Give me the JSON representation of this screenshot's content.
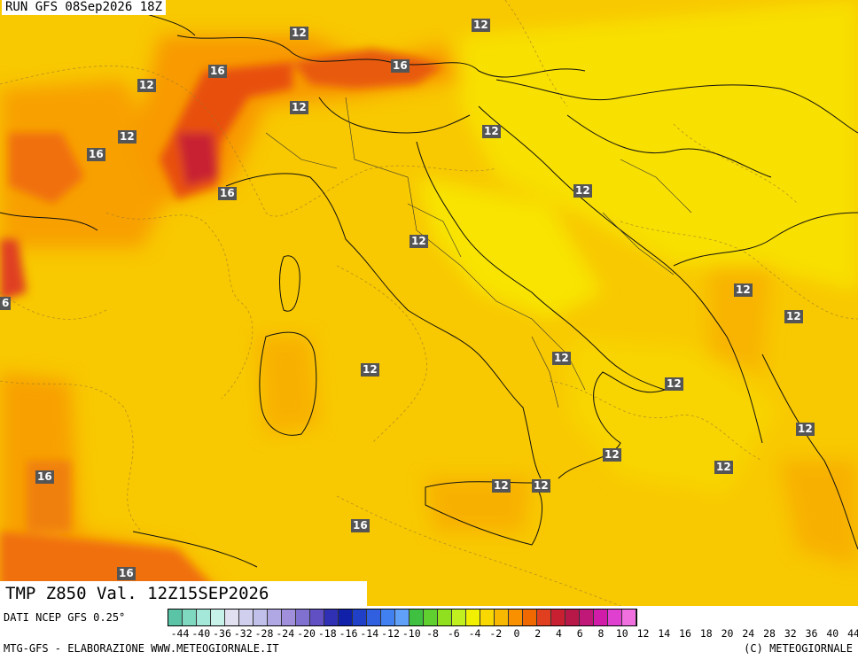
{
  "header": {
    "run": "RUN GFS 08Sep2026 18Z"
  },
  "variable": {
    "label": "TMP  Z850  Val. 12Z15SEP2026"
  },
  "source": "DATI NCEP GFS 0.25°",
  "footer": {
    "left": "MTG-GFS - ELABORAZIONE WWW.METEOGIORNALE.IT",
    "right": "(C) METEOGIORNALE"
  },
  "isotherm_labels": [
    "12",
    "12",
    "16",
    "12",
    "16",
    "12",
    "12",
    "16",
    "16",
    "12",
    "12",
    "12",
    "12",
    "12",
    "12",
    "12",
    "12",
    "12",
    "12",
    "12",
    "12",
    "12",
    "16",
    "16",
    "6"
  ],
  "legend": {
    "ticks": [
      "-44",
      "-40",
      "-36",
      "-32",
      "-28",
      "-24",
      "-20",
      "-18",
      "-16",
      "-14",
      "-12",
      "-10",
      "-8",
      "-6",
      "-4",
      "-2",
      "0",
      "2",
      "4",
      "6",
      "8",
      "10",
      "12",
      "14",
      "16",
      "18",
      "20",
      "24",
      "28",
      "32",
      "36",
      "40",
      "44"
    ],
    "colors": [
      "#5cc4a6",
      "#7fd8c0",
      "#a3e8d8",
      "#c7f2ea",
      "#e0e0f0",
      "#d0d0ee",
      "#c0c0ea",
      "#b0a8e4",
      "#a090dc",
      "#8070d0",
      "#6050c4",
      "#3030b4",
      "#1020a8",
      "#2040c8",
      "#3060e0",
      "#4080f0",
      "#60a0f8",
      "#40c040",
      "#60d030",
      "#90e020",
      "#c0f020",
      "#f0f000",
      "#f8d800",
      "#f8b800",
      "#f89000",
      "#f06800",
      "#e04020",
      "#c82030",
      "#b81848",
      "#c01878",
      "#d01ca8",
      "#e040d0",
      "#f070e0"
    ]
  }
}
